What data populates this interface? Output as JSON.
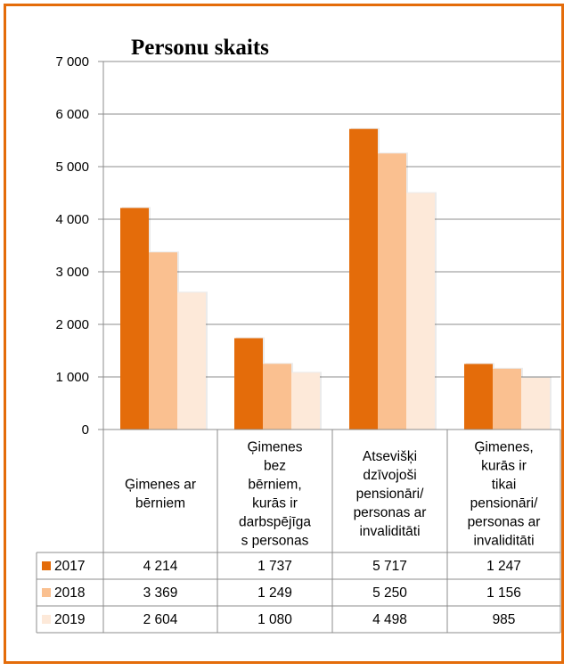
{
  "chart_data": {
    "type": "bar",
    "title": "Personu skaits",
    "categories": [
      [
        "Ģimenes ar",
        "bērniem"
      ],
      [
        "Ģimenes",
        "bez",
        "bērniem,",
        "kurās ir",
        "darbspējīga",
        "s personas"
      ],
      [
        "Atsevišķi",
        "dzīvojoši",
        "pensionāri/",
        "personas ar",
        "invaliditāti"
      ],
      [
        "Ģimenes,",
        "kurās ir",
        "tikai",
        "pensionāri/",
        "personas ar",
        "invaliditāti"
      ]
    ],
    "series": [
      {
        "name": "2017",
        "color": "#E46C0A",
        "values": [
          4214,
          1737,
          5717,
          1247
        ],
        "labels": [
          "4 214",
          "1 737",
          "5 717",
          "1 247"
        ]
      },
      {
        "name": "2018",
        "color": "#FAC090",
        "values": [
          3369,
          1249,
          5250,
          1156
        ],
        "labels": [
          "3 369",
          "1 249",
          "5 250",
          "1 156"
        ]
      },
      {
        "name": "2019",
        "color": "#FDE9D9",
        "values": [
          2604,
          1080,
          4498,
          985
        ],
        "labels": [
          "2 604",
          "1 080",
          "4 498",
          "985"
        ]
      }
    ],
    "yticks": [
      "0",
      "1 000",
      "2 000",
      "3 000",
      "4 000",
      "5 000",
      "6 000",
      "7 000"
    ],
    "ylim": [
      0,
      7000
    ],
    "grid": true,
    "legend": "data-table"
  }
}
